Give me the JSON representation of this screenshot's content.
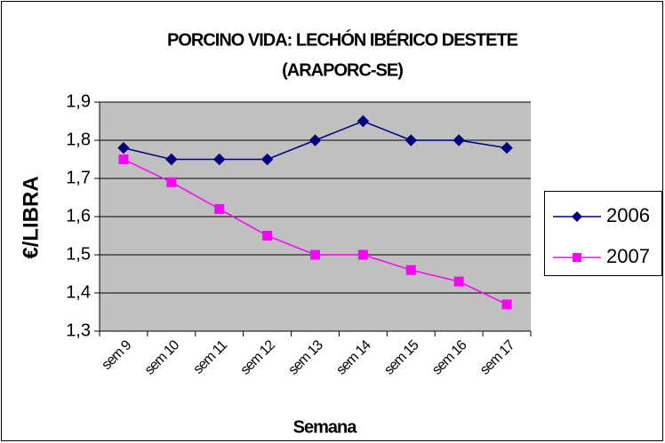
{
  "chart_data": {
    "type": "line",
    "title": [
      "PORCINO VIDA: LECHÓN IBÉRICO DESTETE",
      "(ARAPORC-SE)"
    ],
    "x_label": "Semana",
    "y_label": "€/LIBRA",
    "categories": [
      "sem 9",
      "sem 10",
      "sem 11",
      "sem 12",
      "sem 13",
      "sem 14",
      "sem 15",
      "sem 16",
      "sem 17"
    ],
    "series": [
      {
        "name": "2006",
        "color": "#000080",
        "marker": "diamond",
        "values": [
          1.78,
          1.75,
          1.75,
          1.75,
          1.8,
          1.85,
          1.8,
          1.8,
          1.78
        ]
      },
      {
        "name": "2007",
        "color": "#ff00ff",
        "marker": "square",
        "values": [
          1.75,
          1.69,
          1.62,
          1.55,
          1.5,
          1.5,
          1.46,
          1.43,
          1.37
        ]
      }
    ],
    "ylim": [
      1.3,
      1.9
    ],
    "yticks": [
      {
        "value": 1.3,
        "label": "1,3"
      },
      {
        "value": 1.4,
        "label": "1,4"
      },
      {
        "value": 1.5,
        "label": "1,5"
      },
      {
        "value": 1.6,
        "label": "1,6"
      },
      {
        "value": 1.7,
        "label": "1,7"
      },
      {
        "value": 1.8,
        "label": "1,8"
      },
      {
        "value": 1.9,
        "label": "1,9"
      }
    ],
    "grid": true,
    "legend": "right",
    "plot_background": "#c0c0c0"
  }
}
